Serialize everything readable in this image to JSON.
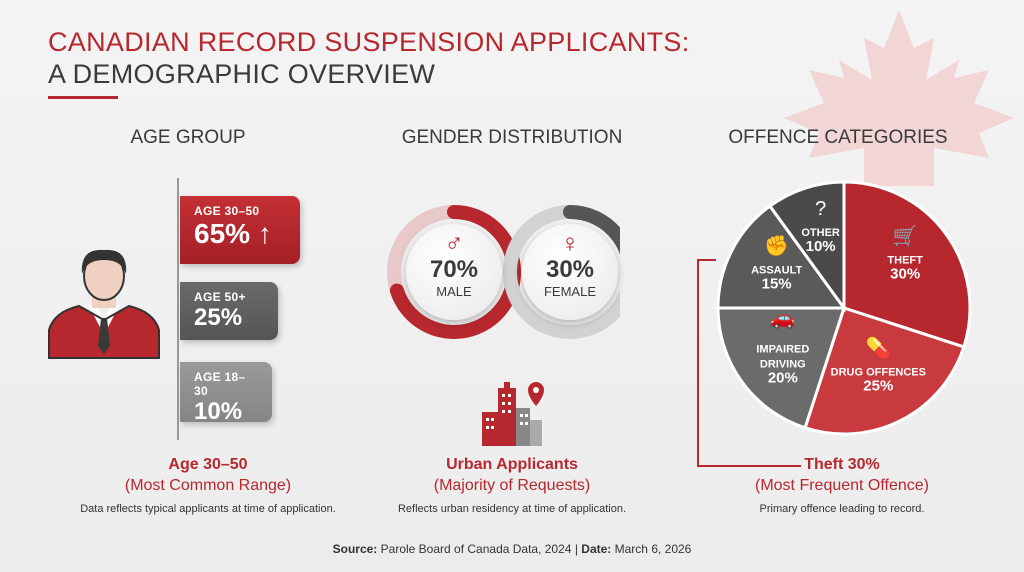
{
  "header": {
    "title_line1": "CANADIAN RECORD SUSPENSION APPLICANTS:",
    "title_line2": "A DEMOGRAPHIC OVERVIEW"
  },
  "age": {
    "section_title": "AGE GROUP",
    "tags": [
      {
        "label": "AGE 30–50",
        "value": "65% ↑"
      },
      {
        "label": "AGE 50+",
        "value": "25%"
      },
      {
        "label": "AGE 18–30",
        "value": "10%"
      }
    ],
    "caption_main": "Age 30–50",
    "caption_sub": "(Most Common Range)",
    "caption_note": "Data reflects typical applicants at time of application."
  },
  "gender": {
    "section_title": "GENDER DISTRIBUTION",
    "male": {
      "symbol": "♂",
      "value": "70%",
      "label": "MALE"
    },
    "female": {
      "symbol": "♀",
      "value": "30%",
      "label": "FEMALE"
    },
    "caption_main": "Urban Applicants",
    "caption_sub": "(Majority of Requests)",
    "caption_note": "Reflects urban residency at time of application."
  },
  "offence": {
    "section_title": "OFFENCE CATEGORIES",
    "caption_main": "Theft 30%",
    "caption_sub": "(Most Frequent Offence)",
    "caption_note": "Primary offence leading to record."
  },
  "footer": {
    "source_label": "Source:",
    "source_text": "Parole Board of Canada Data, 2024",
    "separator": "|",
    "date_label": "Date:",
    "date_text": "March 6, 2026"
  },
  "colors": {
    "accent": "#b7282e",
    "dark": "#555555",
    "grey": "#858585"
  },
  "chart_data": [
    {
      "type": "bar",
      "categories": [
        "AGE 30–50",
        "AGE 50+",
        "AGE 18–30"
      ],
      "values": [
        65,
        25,
        10
      ]
    },
    {
      "type": "pie",
      "categories": [
        "MALE",
        "FEMALE"
      ],
      "values": [
        70,
        30
      ]
    },
    {
      "type": "pie",
      "categories": [
        "THEFT",
        "DRUG OFFENCES",
        "IMPAIRED DRIVING",
        "ASSAULT",
        "OTHER"
      ],
      "values": [
        30,
        25,
        20,
        15,
        10
      ],
      "colors": [
        "#b7282e",
        "#c93a3e",
        "#6b6b6b",
        "#5a5a5a",
        "#4a4a4a"
      ],
      "display_labels": [
        [
          "THEFT",
          "30%"
        ],
        [
          "DRUG OFFENCES",
          "25%"
        ],
        [
          "IMPAIRED",
          "DRIVING",
          "20%"
        ],
        [
          "ASSAULT",
          "15%"
        ],
        [
          "OTHER",
          "10%"
        ]
      ],
      "icons": [
        "cart-icon",
        "pills-icon",
        "car-icon",
        "fist-icon",
        "question-icon"
      ]
    }
  ]
}
